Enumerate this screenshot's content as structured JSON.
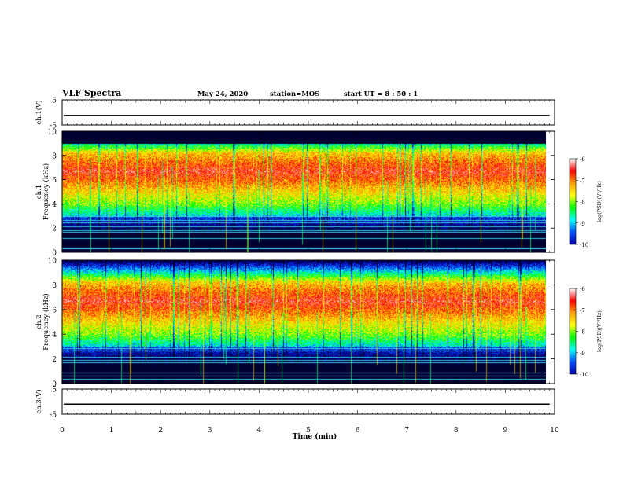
{
  "header": {
    "title": "VLF Spectra",
    "date": "May 24, 2020",
    "station": "station=MOS",
    "start_ut": "start  UT =   8 : 50 : 1"
  },
  "colorbar": {
    "label": "log(PSD)(V²/Hz)",
    "ticks": [
      "-6",
      "-7",
      "-8",
      "-9",
      "-10"
    ],
    "range": [
      -10,
      -6
    ],
    "stops": [
      "#ffffff",
      "#ff0000",
      "#ffa000",
      "#ffff00",
      "#00ff00",
      "#00ffff",
      "#0050ff",
      "#0000aa",
      "#000030"
    ]
  },
  "chart_data": [
    {
      "type": "line",
      "panel": "ch.1(V)",
      "ylabel": "ch.1(V)",
      "yticks": [
        "5",
        "-5"
      ],
      "ylim": [
        -5,
        5
      ],
      "xlim": [
        0,
        10
      ],
      "description_value": "waveform near constant about -1 V",
      "level": -1.2
    },
    {
      "type": "heatmap",
      "panel": "ch.1 spectrogram",
      "ylabel": "ch.1",
      "ylabel2": "Frequency (kHz)",
      "yticks": [
        "0",
        "2",
        "4",
        "6",
        "8",
        "10"
      ],
      "ylim": [
        0,
        10
      ],
      "xlim": [
        0,
        9.82
      ],
      "zlim": [
        -10,
        -6
      ],
      "peak_band_khz": [
        5.5,
        8.0
      ],
      "cutoff_khz": 9.0,
      "data_end_min": 9.82
    },
    {
      "type": "heatmap",
      "panel": "ch.2 spectrogram",
      "ylabel": "ch.2",
      "ylabel2": "Frequency (kHz)",
      "yticks": [
        "0",
        "2",
        "4",
        "6",
        "8",
        "10"
      ],
      "ylim": [
        0,
        10
      ],
      "xlim": [
        0,
        9.82
      ],
      "zlim": [
        -10,
        -6
      ],
      "peak_band_khz": [
        5.0,
        8.0
      ],
      "data_end_min": 9.82
    },
    {
      "type": "line",
      "panel": "ch.3(V)",
      "ylabel": "ch.3(V)",
      "yticks": [
        "5",
        "-5"
      ],
      "ylim": [
        -5,
        5
      ],
      "xlim": [
        0,
        10
      ],
      "level": -1.0
    }
  ],
  "xaxis": {
    "label": "Time  (min)",
    "ticks": [
      "0",
      "1",
      "2",
      "3",
      "4",
      "5",
      "6",
      "7",
      "8",
      "9",
      "10"
    ]
  }
}
